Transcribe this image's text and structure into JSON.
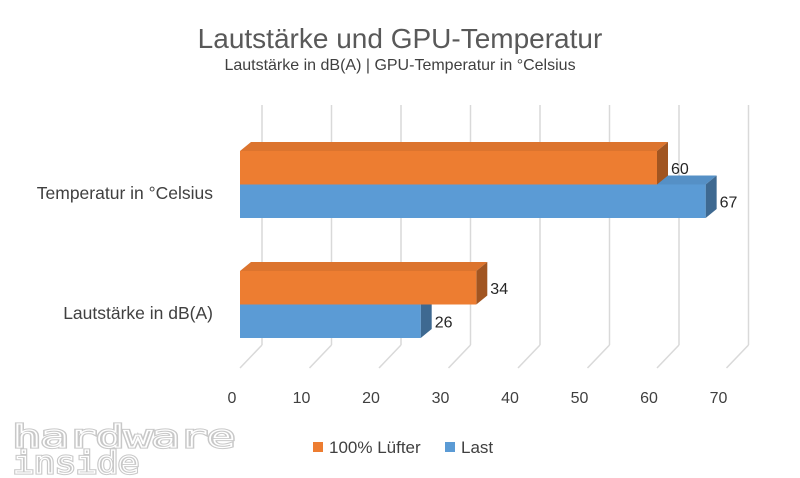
{
  "chart_data": {
    "type": "bar",
    "orientation": "horizontal",
    "three_d": true,
    "title": "Lautstärke und GPU-Temperatur",
    "subtitle": "Lautstärke in dB(A) | GPU-Temperatur in °Celsius",
    "categories": [
      "Temperatur in °Celsius",
      "Lautstärke in dB(A)"
    ],
    "series": [
      {
        "name": "100% Lüfter",
        "color": "#ED7D31",
        "values": [
          60,
          34
        ]
      },
      {
        "name": "Last",
        "color": "#5B9BD5",
        "values": [
          67,
          26
        ]
      }
    ],
    "xlim": [
      0,
      70
    ],
    "xticks": [
      0,
      10,
      20,
      30,
      40,
      50,
      60,
      70
    ],
    "grid": true,
    "data_labels": true,
    "legend": "bottom"
  },
  "watermark": {
    "line1": "hardware",
    "line2": "inside"
  }
}
